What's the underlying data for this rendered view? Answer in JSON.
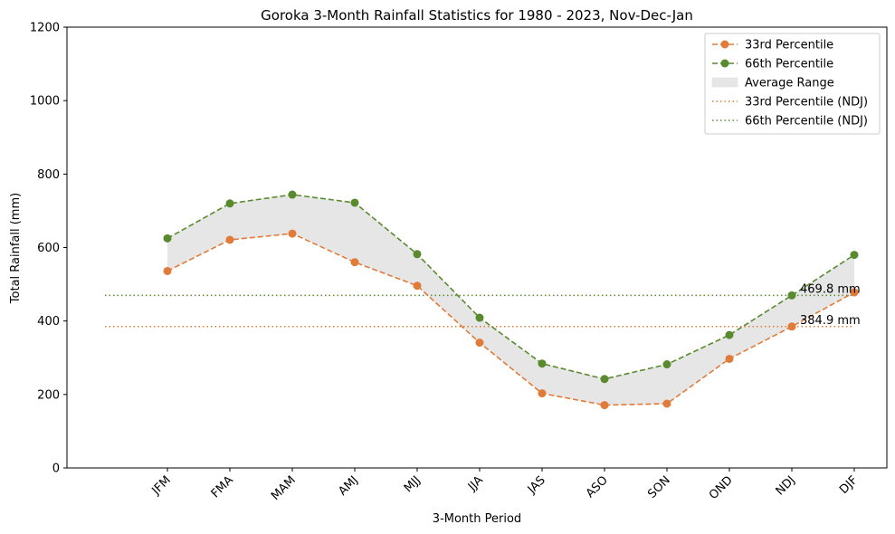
{
  "chart_data": {
    "type": "line",
    "title": "Goroka 3-Month Rainfall Statistics for 1980 - 2023, Nov-Dec-Jan",
    "xlabel": "3-Month Period",
    "ylabel": "Total Rainfall (mm)",
    "ylim": [
      0,
      1200
    ],
    "yticks": [
      0,
      200,
      400,
      600,
      800,
      1000,
      1200
    ],
    "categories": [
      "JFM",
      "FMA",
      "MAM",
      "AMJ",
      "MJJ",
      "JJA",
      "JAS",
      "ASO",
      "SON",
      "OND",
      "NDJ",
      "DJF"
    ],
    "series": [
      {
        "name": "33rd Percentile",
        "color": "#e07b39",
        "style": "dashed-with-markers",
        "values": [
          536,
          621,
          638,
          560,
          496,
          341,
          203,
          171,
          175,
          297,
          384.9,
          478
        ]
      },
      {
        "name": "66th Percentile",
        "color": "#5a8a2e",
        "style": "dashed-with-markers",
        "values": [
          625,
          720,
          744,
          722,
          582,
          409,
          284,
          242,
          282,
          362,
          469.8,
          580
        ]
      }
    ],
    "band": {
      "name": "Average Range",
      "color": "#e6e6e6",
      "between": [
        "33rd Percentile",
        "66th Percentile"
      ]
    },
    "reference_lines": [
      {
        "name": "33rd Percentile (NDJ)",
        "value": 384.9,
        "color": "#e07b39",
        "style": "dotted",
        "label": "384.9 mm"
      },
      {
        "name": "66th Percentile (NDJ)",
        "value": 469.8,
        "color": "#5a8a2e",
        "style": "dotted",
        "label": "469.8 mm"
      }
    ],
    "legend": {
      "placement": "top-right",
      "entries": [
        "33rd Percentile",
        "66th Percentile",
        "Average Range",
        "33rd Percentile (NDJ)",
        "66th Percentile (NDJ)"
      ]
    },
    "grid": false
  }
}
